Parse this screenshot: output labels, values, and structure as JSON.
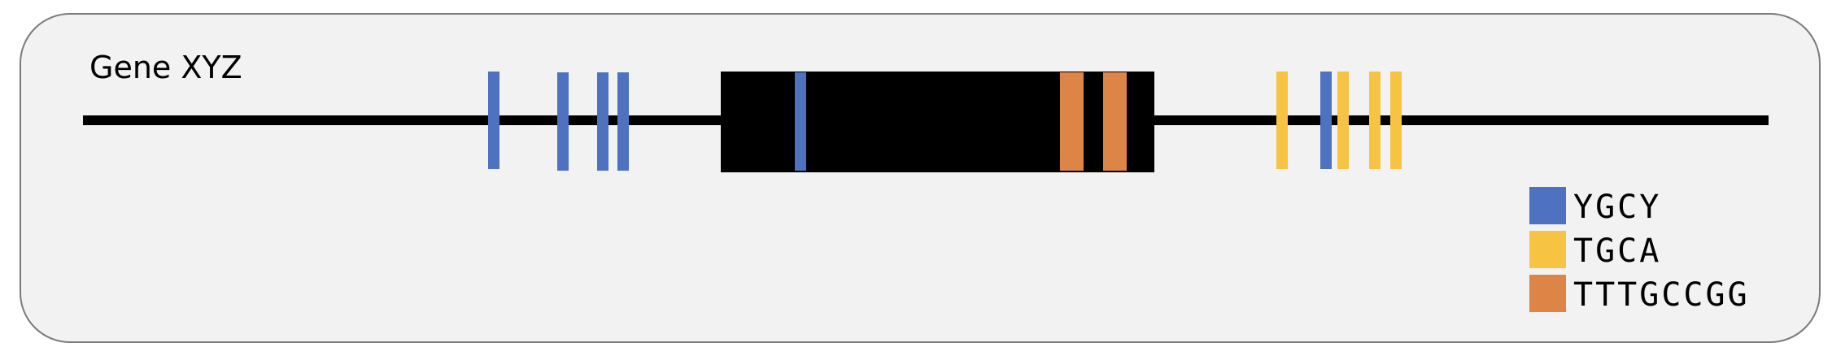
{
  "diagram": {
    "gene_label": "Gene XYZ",
    "colors": {
      "backbone": "#000000",
      "exon": "#000000",
      "YGCY": "#4f72c0",
      "TGCA": "#f6c343",
      "TTTGCCGG": "#dd8447"
    },
    "legend": [
      {
        "label": "YGCY",
        "color_key": "YGCY"
      },
      {
        "label": "TGCA",
        "color_key": "TGCA"
      },
      {
        "label": "TTTGCCGG",
        "color_key": "TTTGCCGG"
      }
    ]
  }
}
